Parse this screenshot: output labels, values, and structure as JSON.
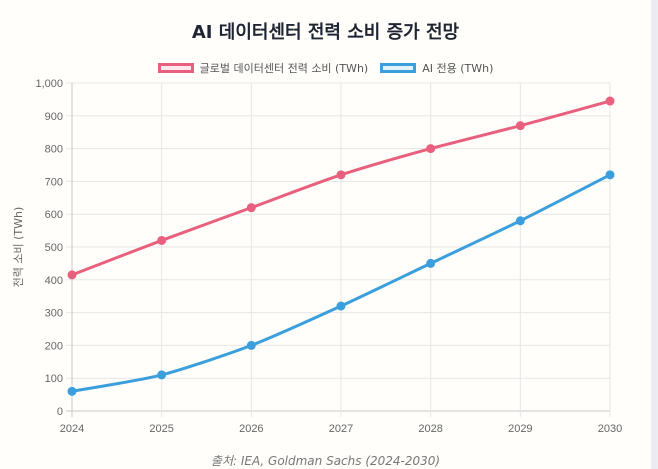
{
  "chart_data": {
    "type": "line",
    "title": "AI 데이터센터 전력 소비 증가 전망",
    "xlabel": "",
    "ylabel": "전력 소비 (TWh)",
    "categories": [
      "2024",
      "2025",
      "2026",
      "2027",
      "2028",
      "2029",
      "2030"
    ],
    "ylim": [
      0,
      1000
    ],
    "yticks": [
      "0",
      "100",
      "200",
      "300",
      "400",
      "500",
      "600",
      "700",
      "800",
      "900",
      "1,000"
    ],
    "ytick_values": [
      0,
      100,
      200,
      300,
      400,
      500,
      600,
      700,
      800,
      900,
      1000
    ],
    "grid": true,
    "legend_position": "top",
    "series": [
      {
        "name": "글로벌 데이터센터 전력 소비 (TWh)",
        "values": [
          415,
          520,
          620,
          720,
          800,
          870,
          945
        ],
        "color": "#e8607e",
        "fill": "#fde8ee"
      },
      {
        "name": "AI 전용 (TWh)",
        "values": [
          60,
          110,
          200,
          320,
          450,
          580,
          720
        ],
        "color": "#3a9fdc",
        "fill": "#e3f1fb"
      }
    ],
    "source": "출처: IEA, Goldman Sachs (2024-2030)"
  }
}
